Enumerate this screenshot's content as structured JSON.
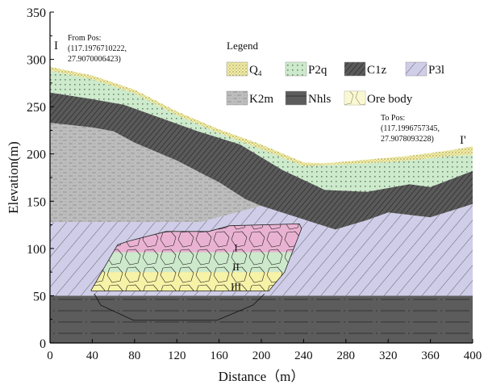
{
  "chart_data": {
    "type": "cross-section",
    "xlabel": "Distance（m）",
    "ylabel": "Elevation(m)",
    "xlim": [
      0,
      400
    ],
    "ylim": [
      0,
      350
    ],
    "xticks": [
      0,
      40,
      80,
      120,
      160,
      200,
      240,
      280,
      320,
      360,
      400
    ],
    "yticks": [
      0,
      50,
      100,
      150,
      200,
      250,
      300,
      350
    ],
    "section_start": {
      "mark": "I",
      "label": "From Pos:",
      "coord1": "(117.1976710222,",
      "coord2": "27.9070006423)"
    },
    "section_end": {
      "mark": "I'",
      "label": "To Pos:",
      "coord1": "(117.1996757345,",
      "coord2": "27.9078093228)"
    },
    "legend": {
      "title": "Legend",
      "items": [
        {
          "key": "Q4",
          "label": "Q",
          "sub": "4",
          "color": "#f4eea0"
        },
        {
          "key": "P2q",
          "label": "P2q",
          "color": "#cdeacc"
        },
        {
          "key": "C1z",
          "label": "C1z",
          "color": "#555555"
        },
        {
          "key": "P3l",
          "label": "P3l",
          "color": "#cfcde8"
        },
        {
          "key": "K2m",
          "label": "K2m",
          "color": "#bdbdbd"
        },
        {
          "key": "Nhls",
          "label": "Nhls",
          "color": "#5a5a5a"
        },
        {
          "key": "Ore",
          "label": "Ore body",
          "color": "#f6f2a6"
        }
      ]
    },
    "layers": [
      {
        "key": "Nhls",
        "polygon": [
          [
            0,
            0
          ],
          [
            400,
            0
          ],
          [
            400,
            50
          ],
          [
            0,
            50
          ]
        ]
      },
      {
        "key": "P3l",
        "polygon": [
          [
            0,
            50
          ],
          [
            400,
            50
          ],
          [
            400,
            147
          ],
          [
            360,
            133
          ],
          [
            320,
            138
          ],
          [
            300,
            130
          ],
          [
            270,
            120
          ],
          [
            200,
            145
          ],
          [
            143,
            128
          ],
          [
            0,
            128
          ]
        ]
      },
      {
        "key": "K2m",
        "polygon": [
          [
            0,
            128
          ],
          [
            143,
            128
          ],
          [
            200,
            145
          ],
          [
            185,
            152
          ],
          [
            160,
            170
          ],
          [
            120,
            193
          ],
          [
            80,
            212
          ],
          [
            60,
            224
          ],
          [
            40,
            228
          ],
          [
            0,
            233
          ]
        ]
      },
      {
        "key": "C1z",
        "polygon": [
          [
            0,
            233
          ],
          [
            40,
            228
          ],
          [
            60,
            224
          ],
          [
            80,
            212
          ],
          [
            120,
            193
          ],
          [
            160,
            170
          ],
          [
            185,
            152
          ],
          [
            200,
            145
          ],
          [
            270,
            120
          ],
          [
            300,
            130
          ],
          [
            320,
            138
          ],
          [
            360,
            133
          ],
          [
            400,
            147
          ],
          [
            400,
            182
          ],
          [
            360,
            165
          ],
          [
            340,
            168
          ],
          [
            300,
            160
          ],
          [
            260,
            162
          ],
          [
            220,
            183
          ],
          [
            180,
            210
          ],
          [
            140,
            224
          ],
          [
            100,
            240
          ],
          [
            70,
            252
          ],
          [
            40,
            258
          ],
          [
            0,
            265
          ]
        ]
      },
      {
        "key": "P2q",
        "polygon": [
          [
            0,
            265
          ],
          [
            40,
            258
          ],
          [
            70,
            252
          ],
          [
            100,
            240
          ],
          [
            140,
            224
          ],
          [
            180,
            210
          ],
          [
            220,
            183
          ],
          [
            260,
            162
          ],
          [
            300,
            160
          ],
          [
            340,
            168
          ],
          [
            360,
            165
          ],
          [
            400,
            182
          ],
          [
            400,
            199
          ],
          [
            380,
            198
          ],
          [
            340,
            193
          ],
          [
            300,
            190
          ],
          [
            240,
            187
          ],
          [
            200,
            205
          ],
          [
            160,
            222
          ],
          [
            120,
            241
          ],
          [
            80,
            264
          ],
          [
            40,
            279
          ],
          [
            0,
            288
          ]
        ]
      },
      {
        "key": "Q4",
        "polygon": [
          [
            0,
            288
          ],
          [
            40,
            279
          ],
          [
            80,
            264
          ],
          [
            120,
            241
          ],
          [
            160,
            222
          ],
          [
            200,
            205
          ],
          [
            240,
            187
          ],
          [
            300,
            190
          ],
          [
            340,
            193
          ],
          [
            380,
            198
          ],
          [
            400,
            199
          ],
          [
            400,
            208
          ],
          [
            380,
            204
          ],
          [
            340,
            198
          ],
          [
            300,
            194
          ],
          [
            260,
            190
          ],
          [
            240,
            191
          ],
          [
            200,
            210
          ],
          [
            160,
            226
          ],
          [
            120,
            245
          ],
          [
            80,
            268
          ],
          [
            40,
            283
          ],
          [
            0,
            292
          ]
        ]
      }
    ],
    "ore_body": {
      "outline": [
        [
          39,
          56
        ],
        [
          64,
          104
        ],
        [
          75,
          108
        ],
        [
          110,
          118
        ],
        [
          150,
          118
        ],
        [
          170,
          124
        ],
        [
          236,
          126
        ],
        [
          238,
          121
        ],
        [
          222,
          75
        ],
        [
          207,
          55
        ],
        [
          39,
          55
        ]
      ],
      "lower_outline": [
        [
          42,
          52
        ],
        [
          48,
          40
        ],
        [
          79,
          24
        ],
        [
          158,
          24
        ],
        [
          192,
          40
        ],
        [
          203,
          52
        ]
      ],
      "zones": [
        {
          "label": "I",
          "from": 96,
          "to": 127,
          "color": "#eab2d2",
          "label_at": [
            176,
            101
          ]
        },
        {
          "label": "II",
          "from": 75,
          "to": 96,
          "color": "#cde9cc",
          "label_at": [
            176,
            81
          ]
        },
        {
          "label": "III",
          "from": 55,
          "to": 75,
          "color": "#f6f2a6",
          "label_at": [
            176,
            60
          ]
        }
      ]
    }
  }
}
